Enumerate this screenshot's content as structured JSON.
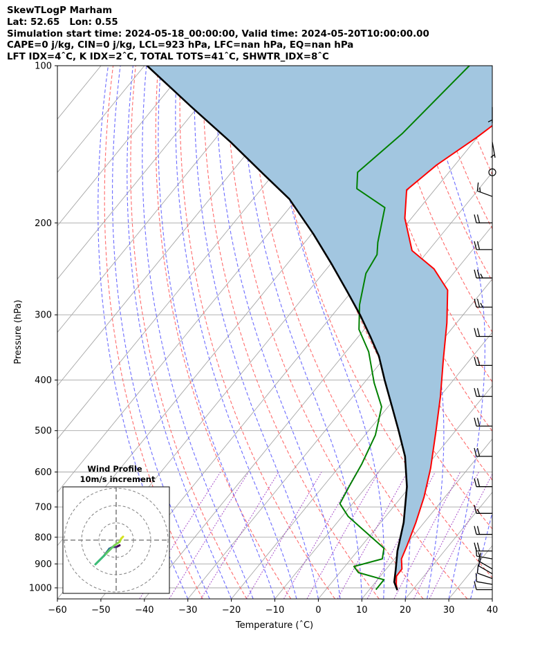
{
  "header": {
    "line1": "SkewTLogP Marham",
    "line2": "Lat: 52.65   Lon: 0.55",
    "line3": "Simulation start time: 2024-05-18_00:00:00, Valid time: 2024-05-20T10:00:00.00",
    "line4": "CAPE=0 j/kg, CIN=0 j/kg, LCL=923 hPa, LFC=nan hPa, EQ=nan hPa",
    "line5": "LFT IDX=4ˆC, K IDX=2ˆC, TOTAL TOTS=41ˆC, SHWTR_IDX=8ˆC"
  },
  "colors": {
    "temperature": "#ff0000",
    "dewpoint": "#008000",
    "parcel": "#000000",
    "cape_fill": "#a2c6e0",
    "dry_adiabat": "#ff6b6b",
    "moist_adiabat": "#6b6bff",
    "mixing_ratio": "#a64dc9",
    "isotherm": "#a6a6a6"
  },
  "chart_data": [
    {
      "type": "line",
      "title": "",
      "xlabel": "Temperature (ˆC)",
      "ylabel": "Pressure (hPa)",
      "xlim": [
        -60,
        40
      ],
      "ylim": [
        1050,
        100
      ],
      "log_y": true,
      "skewed": true,
      "grid": true,
      "xticks": [
        "−60",
        "−50",
        "−40",
        "−30",
        "−20",
        "−10",
        "0",
        "10",
        "20",
        "30",
        "40"
      ],
      "yticks": [
        "100",
        "200",
        "300",
        "400",
        "500",
        "600",
        "700",
        "800",
        "900",
        "1000"
      ],
      "series": [
        {
          "name": "",
          "role": "temperature",
          "color": "#ff0000",
          "points": [
            [
              16.5,
              1010
            ],
            [
              15.2,
              985
            ],
            [
              13.7,
              950
            ],
            [
              13.6,
              920
            ],
            [
              11.6,
              880
            ],
            [
              10.4,
              830
            ],
            [
              8.1,
              750
            ],
            [
              5.2,
              670
            ],
            [
              1.3,
              590
            ],
            [
              -4.5,
              500
            ],
            [
              -9.9,
              430
            ],
            [
              -16.1,
              366
            ],
            [
              -22.2,
              311
            ],
            [
              -28.2,
              269
            ],
            [
              -35.3,
              245
            ],
            [
              -43.8,
              226
            ],
            [
              -51.5,
              196
            ],
            [
              -56.4,
              173
            ],
            [
              -54.2,
              155
            ],
            [
              -50.1,
              137
            ],
            [
              -46.6,
              120
            ],
            [
              -43.9,
              108
            ],
            [
              -41.4,
              100
            ]
          ]
        },
        {
          "name": "",
          "role": "dewpoint",
          "color": "#008000",
          "points": [
            [
              11.5,
              1008
            ],
            [
              11.5,
              965
            ],
            [
              4.3,
              935
            ],
            [
              2.1,
              910
            ],
            [
              7.2,
              880
            ],
            [
              5.6,
              840
            ],
            [
              -8.6,
              730
            ],
            [
              -12.9,
              690
            ],
            [
              -14.0,
              640
            ],
            [
              -15.3,
              580
            ],
            [
              -17.6,
              510
            ],
            [
              -21.5,
              450
            ],
            [
              -27.7,
              405
            ],
            [
              -34.8,
              353
            ],
            [
              -41.2,
              320
            ],
            [
              -45.7,
              287
            ],
            [
              -50.1,
              250
            ],
            [
              -51.1,
              230
            ],
            [
              -53.2,
              218
            ],
            [
              -58.1,
              187
            ],
            [
              -68.1,
              172
            ],
            [
              -71.0,
              160
            ],
            [
              -68.0,
              135
            ],
            [
              -65.3,
              100
            ]
          ]
        },
        {
          "name": "",
          "role": "parcel",
          "color": "#000000",
          "points": [
            [
              16.5,
              1010
            ],
            [
              14.3,
              975
            ],
            [
              12.3,
              923
            ],
            [
              9.2,
              850
            ],
            [
              5.3,
              750
            ],
            [
              -0.7,
              640
            ],
            [
              -6.8,
              560
            ],
            [
              -13.1,
              500
            ],
            [
              -19.1,
              450
            ],
            [
              -25.8,
              400
            ],
            [
              -31.6,
              360
            ],
            [
              -37.3,
              330
            ],
            [
              -43.7,
              300
            ],
            [
              -51.2,
              270
            ],
            [
              -59.7,
              240
            ],
            [
              -69.6,
              210
            ],
            [
              -81.7,
              180
            ],
            [
              -93.1,
              160
            ],
            [
              -105.9,
              140
            ],
            [
              -121.4,
              120
            ],
            [
              -139.4,
              100
            ]
          ]
        }
      ],
      "wind_barbs": [
        {
          "p": 1008,
          "speed_kt": 10,
          "dir": 270
        },
        {
          "p": 985,
          "speed_kt": 10,
          "dir": 280
        },
        {
          "p": 960,
          "speed_kt": 10,
          "dir": 290
        },
        {
          "p": 940,
          "speed_kt": 10,
          "dir": 300
        },
        {
          "p": 920,
          "speed_kt": 10,
          "dir": 300
        },
        {
          "p": 880,
          "speed_kt": 15,
          "dir": 280
        },
        {
          "p": 850,
          "speed_kt": 20,
          "dir": 270
        },
        {
          "p": 790,
          "speed_kt": 20,
          "dir": 270
        },
        {
          "p": 720,
          "speed_kt": 15,
          "dir": 270
        },
        {
          "p": 640,
          "speed_kt": 20,
          "dir": 270
        },
        {
          "p": 560,
          "speed_kt": 20,
          "dir": 270
        },
        {
          "p": 490,
          "speed_kt": 20,
          "dir": 270
        },
        {
          "p": 430,
          "speed_kt": 20,
          "dir": 270
        },
        {
          "p": 375,
          "speed_kt": 20,
          "dir": 270
        },
        {
          "p": 330,
          "speed_kt": 20,
          "dir": 270
        },
        {
          "p": 290,
          "speed_kt": 25,
          "dir": 270
        },
        {
          "p": 255,
          "speed_kt": 25,
          "dir": 270
        },
        {
          "p": 225,
          "speed_kt": 20,
          "dir": 270
        },
        {
          "p": 200,
          "speed_kt": 20,
          "dir": 270
        },
        {
          "p": 178,
          "speed_kt": 15,
          "dir": 290
        },
        {
          "p": 160,
          "speed_kt": 0,
          "dir": 0
        },
        {
          "p": 140,
          "speed_kt": 5,
          "dir": 170
        },
        {
          "p": 120,
          "speed_kt": 5,
          "dir": 180
        }
      ]
    },
    {
      "type": "line",
      "title": "Wind Profile",
      "subtitle": "10m/s increment",
      "hodograph": true,
      "ring_increment_ms": 10,
      "points": [
        [
          2,
          -3
        ],
        [
          0,
          -4
        ],
        [
          -2,
          -4
        ],
        [
          -4,
          -5
        ],
        [
          -7,
          -9
        ],
        [
          -10,
          -12
        ],
        [
          -12,
          -14
        ],
        [
          -6,
          -8
        ],
        [
          -1,
          -3
        ],
        [
          2,
          -1
        ],
        [
          3,
          1
        ],
        [
          4,
          2
        ]
      ]
    }
  ]
}
